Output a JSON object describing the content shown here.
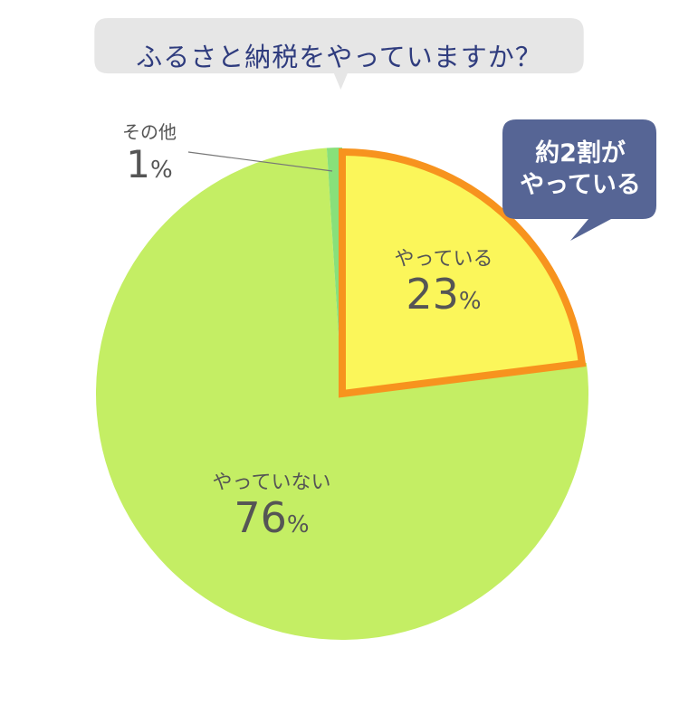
{
  "title": "ふるさと納税をやっていますか？",
  "callout": {
    "line1": "約2割が",
    "line2": "やっている"
  },
  "chart_data": {
    "type": "pie",
    "title": "ふるさと納税をやっていますか？",
    "start": "top",
    "direction": "clockwise",
    "unit": "%",
    "slices": [
      {
        "label": "やっている",
        "value": 23,
        "color": "#fbf65a",
        "outline": "#f7931e",
        "highlighted": true
      },
      {
        "label": "やっていない",
        "value": 76,
        "color": "#c4ee64",
        "outline": "",
        "highlighted": false
      },
      {
        "label": "その他",
        "value": 1,
        "color": "#88e07a",
        "outline": "",
        "highlighted": false
      }
    ]
  },
  "colors": {
    "title_bubble": "#e6e6e6",
    "title_text": "#2f3c7e",
    "callout_bg": "#566595"
  }
}
